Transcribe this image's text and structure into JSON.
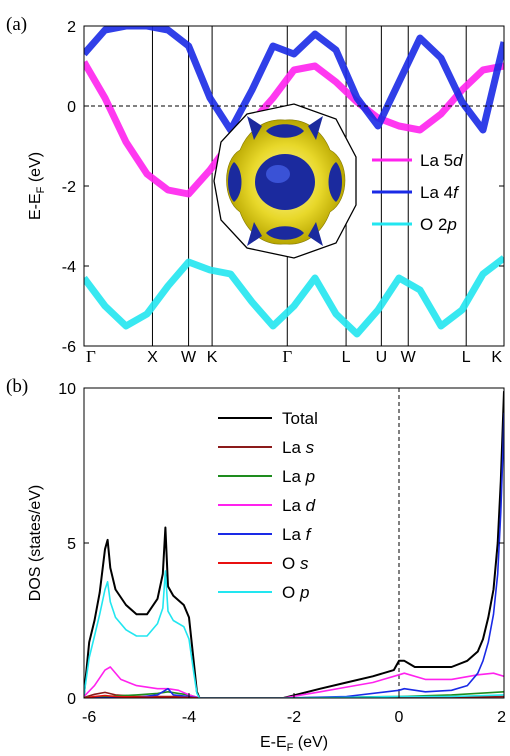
{
  "chart_data": [
    {
      "panel": "(a)",
      "type": "line",
      "ylabel": "E-E",
      "ylabel_sub": "F",
      "ylabel_unit": " (eV)",
      "ylim": [
        -6,
        2
      ],
      "yticks": [
        "2",
        "0",
        "-2",
        "-4",
        "-6"
      ],
      "kpoints": [
        {
          "label": "Γ",
          "greek": true
        },
        {
          "label": "X"
        },
        {
          "label": "W"
        },
        {
          "label": "K"
        },
        {
          "label": "Γ",
          "greek": true
        },
        {
          "label": "L"
        },
        {
          "label": "U"
        },
        {
          "label": "W"
        },
        {
          "label": "L"
        },
        {
          "label": "K"
        }
      ],
      "fermi_level": 0,
      "legend": [
        {
          "pre": "La 5",
          "it": "d",
          "color": "#ff22ee"
        },
        {
          "pre": "La 4",
          "it": "f",
          "color": "#1a2ae6"
        },
        {
          "pre": "O 2",
          "it": "p",
          "color": "#22e6f0"
        }
      ],
      "bands": {
        "La 5d": {
          "color": "#ff22ee",
          "x": [
            0,
            0.05,
            0.1,
            0.15,
            0.2,
            0.249,
            0.3,
            0.349,
            0.4,
            0.45,
            0.5,
            0.55,
            0.6,
            0.65,
            0.7,
            0.75,
            0.8,
            0.85,
            0.9,
            0.95,
            1
          ],
          "y": [
            1.1,
            0.2,
            -0.9,
            -1.7,
            -2.1,
            -2.2,
            -1.6,
            -0.9,
            -0.4,
            0.2,
            0.9,
            1.0,
            0.6,
            0.1,
            -0.3,
            -0.5,
            -0.6,
            -0.2,
            0.4,
            0.9,
            1.0
          ]
        },
        "La 4f": {
          "color": "#1a2ae6",
          "x": [
            0,
            0.05,
            0.1,
            0.15,
            0.2,
            0.249,
            0.3,
            0.349,
            0.4,
            0.45,
            0.5,
            0.55,
            0.6,
            0.65,
            0.7,
            0.75,
            0.8,
            0.85,
            0.9,
            0.95,
            1
          ],
          "y": [
            1.3,
            1.9,
            2.0,
            2.0,
            1.9,
            1.5,
            0.2,
            -0.6,
            0.4,
            1.5,
            1.3,
            1.8,
            1.4,
            0.2,
            -0.5,
            0.6,
            1.7,
            1.2,
            0.1,
            -0.6,
            1.6
          ]
        },
        "O 2p": {
          "color": "#22e6f0",
          "x": [
            0,
            0.05,
            0.1,
            0.15,
            0.2,
            0.249,
            0.3,
            0.349,
            0.4,
            0.45,
            0.5,
            0.55,
            0.6,
            0.65,
            0.7,
            0.75,
            0.8,
            0.85,
            0.9,
            0.95,
            1
          ],
          "y": [
            -4.3,
            -5.0,
            -5.5,
            -5.2,
            -4.5,
            -3.9,
            -4.1,
            -4.2,
            -4.9,
            -5.5,
            -5.0,
            -4.3,
            -5.2,
            -5.7,
            -5.1,
            -4.3,
            -4.6,
            -5.5,
            -5.1,
            -4.2,
            -3.8
          ]
        }
      },
      "inset": "fermi-surface"
    },
    {
      "panel": "(b)",
      "type": "line",
      "ylabel": "DOS (states/eV)",
      "xlabel": "E-E",
      "xlabel_sub": "F",
      "xlabel_unit": " (eV)",
      "xlim": [
        -6,
        2
      ],
      "ylim": [
        0,
        10
      ],
      "xticks": [
        "-6",
        "-4",
        "-2",
        "0",
        "2"
      ],
      "yticks": [
        "0",
        "5",
        "10"
      ],
      "fermi_level": 0,
      "series": [
        {
          "name": "Total",
          "color": "#000000",
          "x": [
            -6,
            -5.9,
            -5.8,
            -5.7,
            -5.6,
            -5.55,
            -5.5,
            -5.4,
            -5.2,
            -5.0,
            -4.8,
            -4.6,
            -4.5,
            -4.45,
            -4.4,
            -4.3,
            -4.1,
            -4.0,
            -3.9,
            -3.85,
            -3.8,
            -3.4,
            -2.2,
            -1.5,
            -1.0,
            -0.5,
            -0.1,
            0,
            0.1,
            0.2,
            0.3,
            0.6,
            1.0,
            1.3,
            1.5,
            1.6,
            1.7,
            1.8,
            1.88,
            1.94,
            1.98,
            2.0
          ],
          "y": [
            0.1,
            1.8,
            2.5,
            3.4,
            4.8,
            5.1,
            4.2,
            3.5,
            3.0,
            2.7,
            2.7,
            3.2,
            4.0,
            5.5,
            3.6,
            3.3,
            3.0,
            2.6,
            1.0,
            0.2,
            0,
            0,
            0,
            0.3,
            0.5,
            0.7,
            0.9,
            1.2,
            1.2,
            1.1,
            1.0,
            1.0,
            1.0,
            1.2,
            1.5,
            1.9,
            2.6,
            3.5,
            5.0,
            7.0,
            9.0,
            9.9
          ]
        },
        {
          "name": "La s",
          "it": "s",
          "pre": "La ",
          "color": "#8b1a1a",
          "x": [
            -6,
            -5.8,
            -5.6,
            -5.4,
            -5.0,
            -4.5,
            -4.0,
            -3.8,
            -2.2,
            0,
            1.0,
            2.0
          ],
          "y": [
            0.02,
            0.12,
            0.18,
            0.1,
            0.05,
            0.05,
            0.05,
            0,
            0,
            0.02,
            0.03,
            0.05
          ]
        },
        {
          "name": "La p",
          "it": "p",
          "pre": "La ",
          "color": "#1e8c1e",
          "x": [
            -6,
            -5.6,
            -5.0,
            -4.6,
            -4.4,
            -4.2,
            -4.0,
            -3.8,
            -2.2,
            0,
            1.0,
            2.0
          ],
          "y": [
            0.02,
            0.05,
            0.1,
            0.15,
            0.2,
            0.15,
            0.1,
            0,
            0,
            0.05,
            0.1,
            0.2
          ]
        },
        {
          "name": "La d",
          "it": "d",
          "pre": "La ",
          "color": "#ff22ee",
          "x": [
            -6,
            -5.8,
            -5.6,
            -5.5,
            -5.3,
            -5.0,
            -4.6,
            -4.4,
            -4.2,
            -4.0,
            -3.8,
            -2.2,
            -1.5,
            -1.0,
            -0.5,
            0,
            0.1,
            0.5,
            1.0,
            1.5,
            1.8,
            2.0
          ],
          "y": [
            0.05,
            0.4,
            0.9,
            1.0,
            0.6,
            0.4,
            0.3,
            0.3,
            0.25,
            0.1,
            0,
            0,
            0.2,
            0.35,
            0.5,
            0.75,
            0.8,
            0.6,
            0.6,
            0.75,
            0.8,
            0.7
          ]
        },
        {
          "name": "La f",
          "it": "f",
          "pre": "La ",
          "color": "#1a2ae6",
          "x": [
            -6,
            -5.0,
            -4.6,
            -4.4,
            -4.3,
            -4.0,
            -3.8,
            -2.2,
            -1.0,
            0,
            0.1,
            0.5,
            1.0,
            1.3,
            1.5,
            1.6,
            1.7,
            1.8,
            1.88,
            1.94,
            1.98,
            2.0
          ],
          "y": [
            0,
            0.02,
            0.1,
            0.3,
            0.1,
            0.05,
            0,
            0,
            0.05,
            0.25,
            0.3,
            0.2,
            0.25,
            0.4,
            0.8,
            1.2,
            1.8,
            2.7,
            4.0,
            6.0,
            8.0,
            9.2
          ]
        },
        {
          "name": "O s",
          "it": "s",
          "pre": "O ",
          "color": "#e81010",
          "x": [
            -6,
            -5.8,
            -5.6,
            -5.4,
            -5.0,
            -4.5,
            -4.0,
            -3.8,
            2.0
          ],
          "y": [
            0,
            0.05,
            0.08,
            0.05,
            0.03,
            0.02,
            0.02,
            0,
            0
          ]
        },
        {
          "name": "O p",
          "it": "p",
          "pre": "O ",
          "color": "#22e6f0",
          "x": [
            -6,
            -5.9,
            -5.8,
            -5.7,
            -5.6,
            -5.55,
            -5.5,
            -5.4,
            -5.2,
            -5.0,
            -4.8,
            -4.6,
            -4.5,
            -4.45,
            -4.4,
            -4.3,
            -4.1,
            -4.0,
            -3.9,
            -3.85,
            -3.8,
            -3.4,
            -2.2,
            -1.0,
            0,
            1.0,
            2.0
          ],
          "y": [
            0.1,
            1.3,
            2.0,
            2.7,
            3.5,
            3.75,
            3.1,
            2.6,
            2.2,
            2.0,
            2.0,
            2.4,
            2.9,
            4.1,
            2.8,
            2.5,
            2.3,
            1.9,
            0.7,
            0.15,
            0,
            0,
            0,
            0.02,
            0.05,
            0.05,
            0.1
          ]
        }
      ]
    }
  ]
}
